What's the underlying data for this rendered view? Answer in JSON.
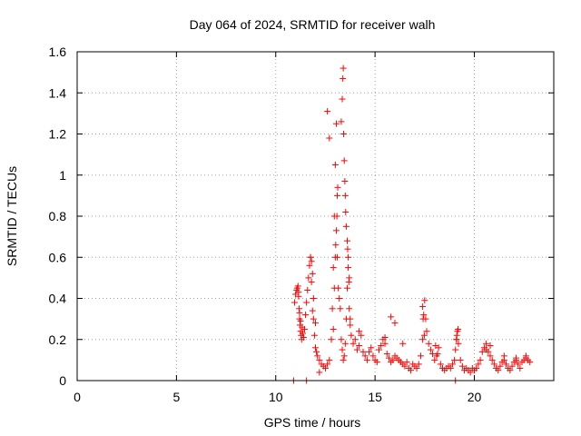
{
  "chart_data": {
    "type": "scatter",
    "title": "Day 064 of 2024, SRMTID for receiver walh",
    "xlabel": "GPS time / hours",
    "ylabel": "SRMTID / TECUs",
    "xlim": [
      0,
      24
    ],
    "ylim": [
      0,
      1.6
    ],
    "xticks": [
      0,
      5,
      10,
      15,
      20
    ],
    "xtick_labels": [
      "0",
      "5",
      "10",
      "15",
      "20"
    ],
    "yticks": [
      0,
      0.2,
      0.4,
      0.6,
      0.8,
      1.0,
      1.2,
      1.4,
      1.6
    ],
    "ytick_labels": [
      "0",
      "0.2",
      "0.4",
      "0.6",
      "0.8",
      "1",
      "1.2",
      "1.4",
      "1.6"
    ],
    "grid": true,
    "marker": "+",
    "color": "#ff0000",
    "series": [
      {
        "name": "SRMTID",
        "x": [
          10.9,
          11.55,
          10.95,
          11.0,
          11.05,
          11.08,
          11.12,
          11.15,
          11.18,
          11.2,
          11.22,
          11.25,
          11.28,
          11.3,
          11.33,
          11.36,
          11.4,
          11.45,
          11.5,
          11.55,
          11.6,
          11.65,
          11.7,
          11.75,
          11.8,
          11.85,
          11.9,
          11.95,
          12.0,
          12.05,
          12.1,
          12.2,
          12.3,
          12.4,
          12.5,
          12.6,
          12.7,
          12.8,
          12.85,
          12.9,
          12.95,
          13.0,
          13.05,
          13.1,
          13.15,
          13.2,
          13.25,
          13.3,
          13.35,
          13.4,
          13.45,
          13.5,
          13.55,
          13.6,
          13.65,
          13.7,
          13.75,
          13.8,
          13.9,
          14.0,
          14.1,
          14.2,
          14.3,
          14.4,
          14.5,
          14.6,
          14.7,
          14.8,
          14.9,
          15.0,
          15.1,
          15.2,
          15.3,
          15.4,
          15.5,
          15.6,
          15.7,
          15.8,
          15.9,
          16.0,
          16.1,
          16.2,
          16.3,
          16.4,
          16.5,
          16.6,
          16.7,
          16.8,
          16.9,
          17.0,
          17.1,
          17.2,
          17.3,
          17.4,
          17.45,
          17.5,
          17.55,
          17.6,
          17.7,
          17.8,
          17.9,
          18.0,
          18.1,
          18.2,
          18.3,
          18.4,
          18.5,
          18.6,
          18.7,
          18.8,
          18.9,
          19.0,
          19.05,
          19.1,
          19.15,
          19.2,
          19.3,
          19.4,
          19.5,
          19.6,
          19.7,
          19.8,
          19.9,
          20.0,
          20.1,
          20.2,
          20.3,
          20.4,
          20.5,
          20.6,
          20.7,
          20.8,
          20.9,
          21.0,
          21.1,
          21.2,
          21.3,
          21.4,
          21.5,
          21.6,
          21.7,
          21.8,
          21.9,
          22.0,
          22.1,
          22.2,
          22.3,
          22.4,
          22.5,
          22.6,
          22.7,
          22.8,
          12.9,
          12.95,
          13.0,
          13.02,
          13.05,
          13.08,
          13.1,
          13.12,
          13.3,
          13.35,
          13.38,
          13.4,
          13.42,
          13.45,
          13.48,
          13.5,
          13.52,
          13.55,
          13.6,
          13.62,
          13.65,
          13.68,
          11.15,
          11.2,
          11.25,
          11.75,
          11.8,
          11.85,
          11.9,
          12.0,
          12.2,
          12.6,
          12.7,
          13.7,
          13.75,
          14.2,
          15.5,
          15.8,
          16.0,
          16.4,
          17.4,
          17.42,
          17.48,
          18.05,
          18.15,
          19.05,
          19.12,
          19.18,
          19.1,
          20.6,
          20.8,
          21.5,
          22.1,
          22.6
        ],
        "y": [
          0.0,
          0.0,
          0.38,
          0.42,
          0.44,
          0.45,
          0.46,
          0.43,
          0.35,
          0.3,
          0.27,
          0.24,
          0.22,
          0.2,
          0.26,
          0.23,
          0.21,
          0.25,
          0.32,
          0.38,
          0.44,
          0.5,
          0.56,
          0.6,
          0.48,
          0.34,
          0.3,
          0.22,
          0.16,
          0.14,
          0.12,
          0.1,
          0.08,
          0.07,
          0.06,
          0.08,
          0.1,
          0.2,
          0.35,
          0.55,
          0.8,
          1.05,
          1.25,
          0.6,
          0.45,
          0.4,
          0.35,
          0.2,
          0.15,
          0.1,
          0.12,
          0.18,
          0.3,
          0.45,
          0.6,
          0.5,
          0.3,
          0.22,
          0.18,
          0.2,
          0.15,
          0.17,
          0.22,
          0.14,
          0.12,
          0.1,
          0.14,
          0.16,
          0.12,
          0.1,
          0.09,
          0.15,
          0.17,
          0.2,
          0.18,
          0.13,
          0.11,
          0.09,
          0.1,
          0.12,
          0.11,
          0.1,
          0.09,
          0.08,
          0.07,
          0.09,
          0.06,
          0.05,
          0.08,
          0.07,
          0.06,
          0.08,
          0.12,
          0.2,
          0.32,
          0.39,
          0.3,
          0.24,
          0.18,
          0.15,
          0.13,
          0.1,
          0.12,
          0.16,
          0.08,
          0.06,
          0.05,
          0.06,
          0.07,
          0.06,
          0.08,
          0.1,
          0.15,
          0.2,
          0.24,
          0.18,
          0.1,
          0.07,
          0.05,
          0.06,
          0.05,
          0.04,
          0.06,
          0.05,
          0.06,
          0.08,
          0.1,
          0.14,
          0.16,
          0.15,
          0.14,
          0.12,
          0.1,
          0.08,
          0.06,
          0.05,
          0.07,
          0.09,
          0.1,
          0.08,
          0.06,
          0.05,
          0.07,
          0.09,
          0.1,
          0.08,
          0.06,
          0.09,
          0.1,
          0.11,
          0.1,
          0.09,
          0.25,
          0.45,
          0.6,
          0.66,
          0.73,
          0.8,
          0.9,
          0.94,
          1.26,
          1.37,
          1.47,
          1.52,
          1.2,
          1.07,
          0.97,
          0.9,
          0.82,
          0.75,
          0.68,
          0.64,
          0.55,
          0.48,
          0.41,
          0.33,
          0.29,
          0.6,
          0.58,
          0.52,
          0.4,
          0.28,
          0.04,
          1.31,
          1.18,
          0.35,
          0.27,
          0.24,
          0.21,
          0.31,
          0.28,
          0.18,
          0.36,
          0.3,
          0.22,
          0.17,
          0.13,
          0.0,
          0.22,
          0.25,
          0.2,
          0.18,
          0.17,
          0.12,
          0.11,
          0.12
        ]
      }
    ]
  }
}
